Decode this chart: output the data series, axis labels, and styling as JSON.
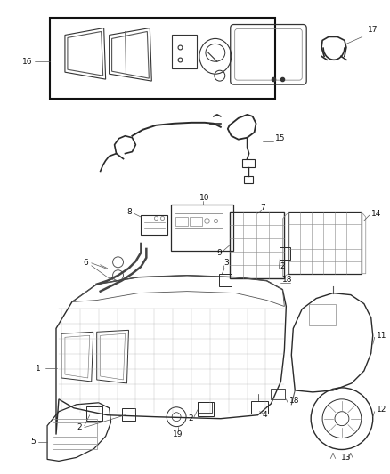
{
  "bg_color": "#ffffff",
  "fig_width": 4.38,
  "fig_height": 5.33,
  "dpi": 100,
  "line_color": "#2a2a2a",
  "gray": "#888888",
  "light_gray": "#cccccc",
  "label_fs": 6.5
}
